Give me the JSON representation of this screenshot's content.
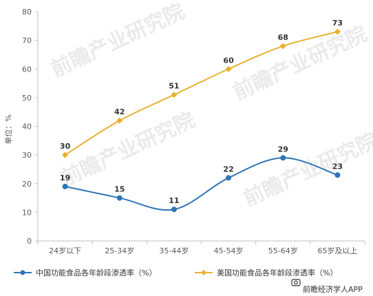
{
  "chart_data": {
    "type": "line",
    "categories": [
      "24岁以下",
      "25-34岁",
      "35-44岁",
      "45-54岁",
      "55-64岁",
      "65岁及以上"
    ],
    "series": [
      {
        "name": "中国功能食品各年龄段渗透率（%）",
        "values": [
          19,
          15,
          11,
          22,
          29,
          23
        ],
        "color": "#2e75b6",
        "marker": "circle"
      },
      {
        "name": "美国功能食品各年龄段渗透率（%）",
        "values": [
          30,
          42,
          51,
          60,
          68,
          73
        ],
        "color": "#e8b030",
        "marker": "diamond"
      }
    ],
    "ylabel": "单位：%",
    "ylim": [
      0,
      80
    ],
    "yticks": [
      0,
      10,
      20,
      30,
      40,
      50,
      60,
      70,
      80
    ],
    "grid": false,
    "legend_position": "bottom",
    "data_labels": true
  },
  "watermark": "前瞻产业研究院",
  "source_credit": "前瞻经济学人APP",
  "source_icon": "camera-icon"
}
